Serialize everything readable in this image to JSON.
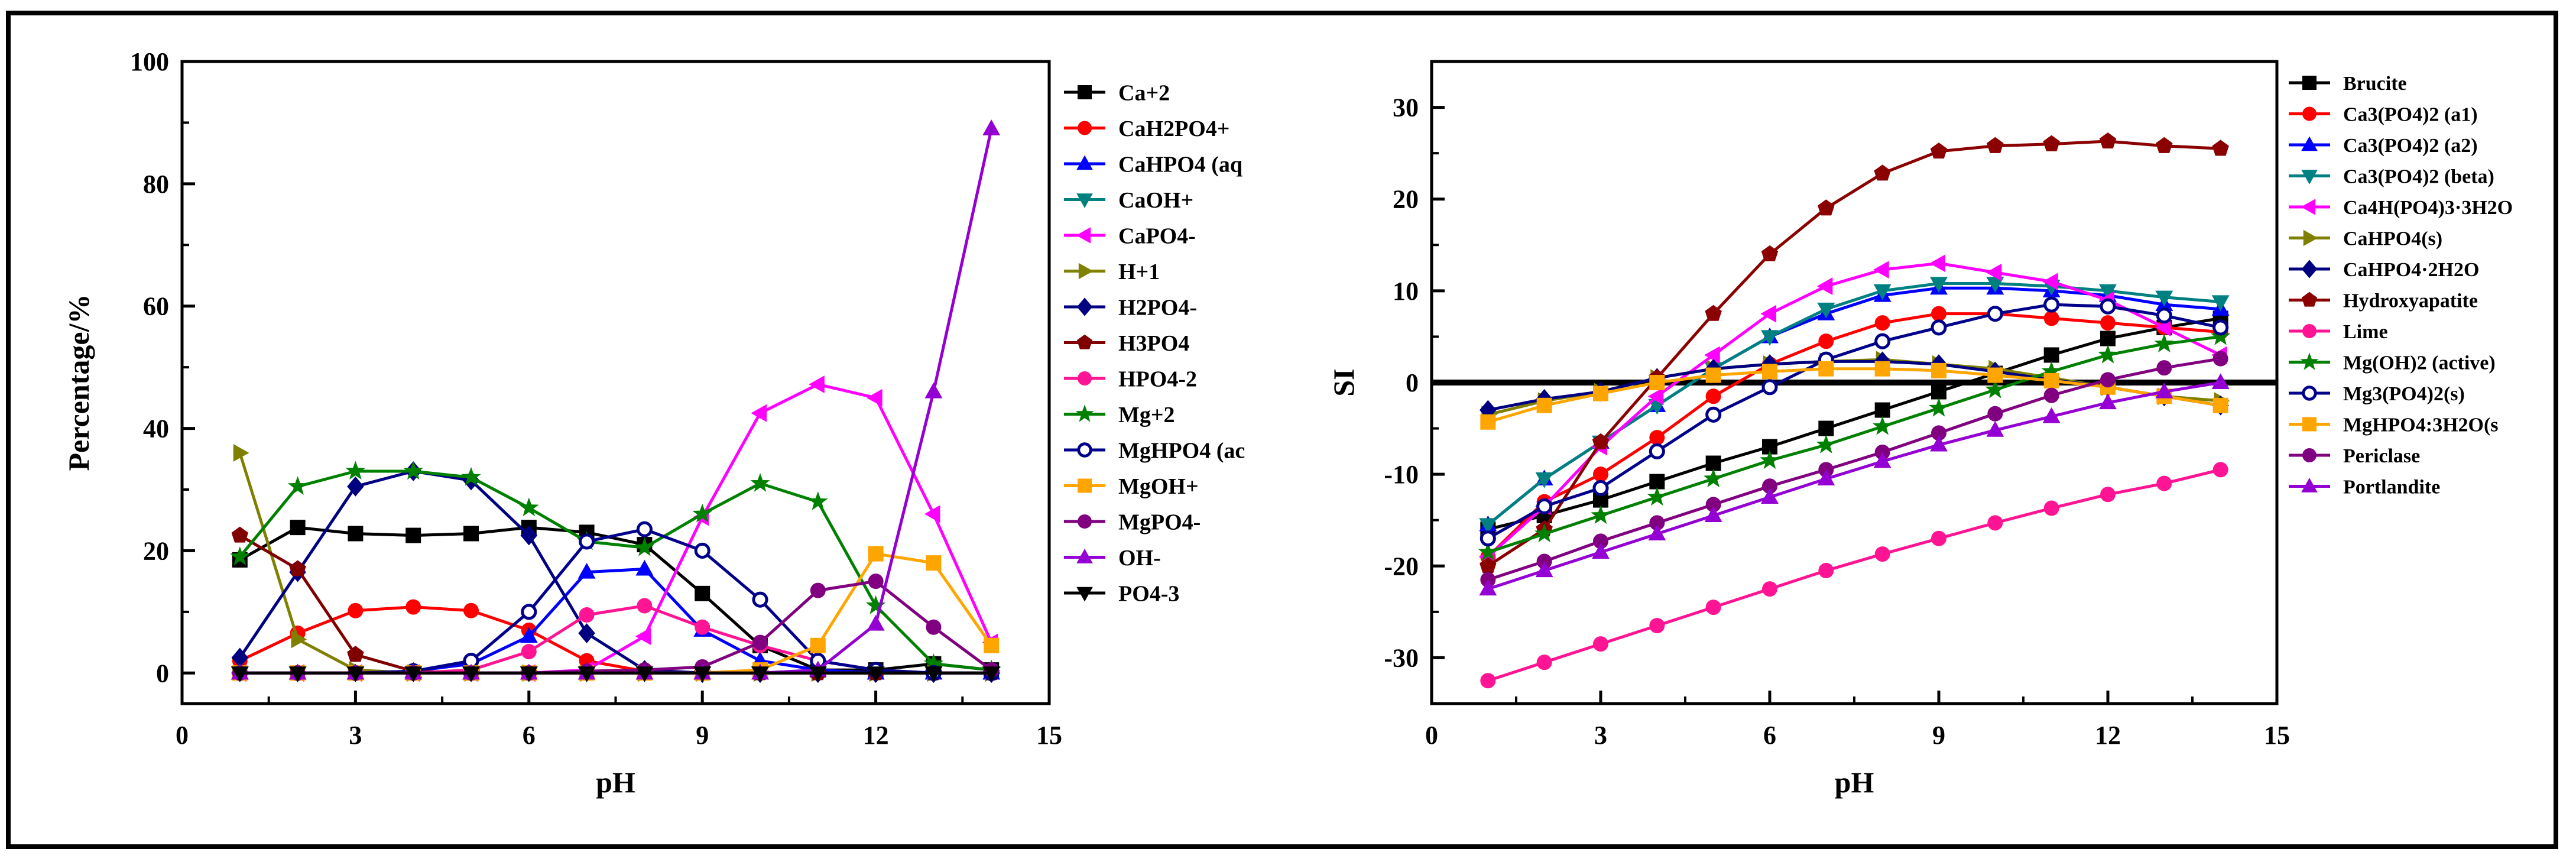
{
  "chart_data": [
    {
      "type": "line",
      "title": "",
      "xlabel": "pH",
      "ylabel": "Percentage/%",
      "xlim": [
        0,
        15
      ],
      "ylim": [
        -5,
        100
      ],
      "xticks": [
        0,
        3,
        6,
        9,
        12,
        15
      ],
      "yticks": [
        0,
        20,
        40,
        60,
        80,
        100
      ],
      "x": [
        1,
        2,
        3,
        4,
        5,
        6,
        7,
        8,
        9,
        10,
        11,
        12,
        13,
        14
      ],
      "legend_position": "right",
      "series": [
        {
          "name": "Ca+2",
          "color": "#000000",
          "marker": "square",
          "values": [
            18.5,
            23.8,
            22.8,
            22.5,
            22.8,
            23.8,
            23,
            21,
            13,
            4.5,
            0.5,
            0.5,
            1.5,
            0.5
          ]
        },
        {
          "name": "CaH2PO4+",
          "color": "#ff0000",
          "marker": "circle",
          "values": [
            2,
            6.5,
            10.2,
            10.8,
            10.2,
            7,
            2,
            0.3,
            0,
            0,
            0,
            0,
            0,
            0
          ]
        },
        {
          "name": "CaHPO4 (aq",
          "color": "#0000ff",
          "marker": "triangle-up",
          "values": [
            0,
            0,
            0,
            0.3,
            1.5,
            6,
            16.5,
            17,
            7,
            2,
            0.5,
            0,
            0,
            0
          ]
        },
        {
          "name": "CaOH+",
          "color": "#008080",
          "marker": "triangle-down",
          "values": [
            0,
            0,
            0,
            0,
            0,
            0,
            0,
            0,
            0,
            0,
            0,
            0,
            0,
            0
          ]
        },
        {
          "name": "CaPO4-",
          "color": "#ff00ff",
          "marker": "triangle-left",
          "values": [
            0,
            0,
            0,
            0,
            0,
            0,
            0.5,
            6,
            25.5,
            42.5,
            47.2,
            45,
            26,
            5
          ]
        },
        {
          "name": "H+1",
          "color": "#808000",
          "marker": "triangle-right",
          "values": [
            36,
            5.5,
            0.5,
            0,
            0,
            0,
            0,
            0,
            0,
            0,
            0,
            0,
            0,
            0
          ]
        },
        {
          "name": "H2PO4-",
          "color": "#000080",
          "marker": "diamond",
          "values": [
            2.5,
            16.5,
            30.5,
            33,
            31.5,
            22.5,
            6.5,
            0.5,
            0,
            0,
            0,
            0,
            0,
            0
          ]
        },
        {
          "name": "H3PO4",
          "color": "#800000",
          "marker": "pentagon",
          "values": [
            22.5,
            17,
            3,
            0.3,
            0,
            0,
            0,
            0,
            0,
            0,
            0,
            0,
            0,
            0
          ]
        },
        {
          "name": "HPO4-2",
          "color": "#ff1493",
          "marker": "circle",
          "values": [
            0,
            0,
            0,
            0,
            0.5,
            3.5,
            9.5,
            11,
            7.5,
            4.5,
            2,
            0.5,
            0,
            0
          ]
        },
        {
          "name": "Mg+2",
          "color": "#008000",
          "marker": "star",
          "values": [
            19,
            30.5,
            33,
            33,
            32,
            27,
            21.5,
            20.5,
            26,
            31,
            28,
            11,
            1.5,
            0.5
          ]
        },
        {
          "name": "MgHPO4 (ac",
          "color": "#00008b",
          "marker": "circle-open",
          "values": [
            0,
            0,
            0,
            0.3,
            2,
            10,
            21.5,
            23.5,
            20,
            12,
            2,
            0.5,
            0,
            0
          ]
        },
        {
          "name": "MgOH+",
          "color": "#ffa500",
          "marker": "square",
          "values": [
            0,
            0,
            0,
            0,
            0,
            0,
            0,
            0,
            0,
            0.5,
            4.5,
            19.5,
            18,
            4.5
          ]
        },
        {
          "name": "MgPO4-",
          "color": "#800080",
          "marker": "circle",
          "values": [
            0,
            0,
            0,
            0,
            0,
            0,
            0.3,
            0.5,
            1,
            5,
            13.5,
            15,
            7.5,
            0.5
          ]
        },
        {
          "name": "OH-",
          "color": "#9400d3",
          "marker": "triangle-up",
          "values": [
            0,
            0,
            0,
            0,
            0,
            0,
            0,
            0,
            0,
            0,
            0.5,
            8,
            46,
            89
          ]
        },
        {
          "name": "PO4-3",
          "color": "#000000",
          "marker": "triangle-down",
          "values": [
            0,
            0,
            0,
            0,
            0,
            0,
            0,
            0,
            0,
            0,
            0,
            0,
            0,
            0
          ]
        }
      ]
    },
    {
      "type": "line",
      "title": "",
      "xlabel": "pH",
      "ylabel": "SI",
      "xlim": [
        0,
        15
      ],
      "ylim": [
        -35,
        35
      ],
      "xticks": [
        0,
        3,
        6,
        9,
        12,
        15
      ],
      "yticks": [
        -30,
        -20,
        -10,
        0,
        10,
        20,
        30
      ],
      "x": [
        1,
        2,
        3,
        4,
        5,
        6,
        7,
        8,
        9,
        10,
        11,
        12,
        13,
        14
      ],
      "reference_line": 0,
      "legend_position": "right",
      "series": [
        {
          "name": "Brucite",
          "color": "#000000",
          "marker": "square",
          "values": [
            -16,
            -14.5,
            -12.8,
            -10.8,
            -8.8,
            -7,
            -5,
            -3,
            -1,
            1,
            3,
            4.8,
            6,
            7
          ]
        },
        {
          "name": "Ca3(PO4)2 (a1)",
          "color": "#ff0000",
          "marker": "circle",
          "values": [
            -19,
            -13,
            -10,
            -6,
            -1.5,
            2,
            4.5,
            6.5,
            7.5,
            7.5,
            7,
            6.5,
            6,
            5.5
          ]
        },
        {
          "name": "Ca3(PO4)2 (a2)",
          "color": "#0000ff",
          "marker": "triangle-up",
          "values": [
            -15.5,
            -10.5,
            -6.5,
            -2.5,
            1.5,
            5,
            7.5,
            9.5,
            10.3,
            10.3,
            10,
            9.5,
            8.5,
            8
          ]
        },
        {
          "name": "Ca3(PO4)2 (beta)",
          "color": "#008080",
          "marker": "triangle-down",
          "values": [
            -15.5,
            -10.5,
            -6.5,
            -2.5,
            1.5,
            5,
            8,
            10,
            10.8,
            10.8,
            10.5,
            10,
            9.3,
            8.8
          ]
        },
        {
          "name": "Ca4H(PO4)3·3H2O",
          "color": "#ff00ff",
          "marker": "triangle-left",
          "values": [
            -19,
            -13.5,
            -7,
            -1.5,
            3,
            7.5,
            10.5,
            12.3,
            13,
            12,
            11,
            9,
            6,
            3
          ]
        },
        {
          "name": "CaHPO4(s)",
          "color": "#808000",
          "marker": "triangle-right",
          "values": [
            -3.5,
            -2,
            -1,
            0.5,
            1.5,
            2,
            2.3,
            2.5,
            2,
            1.5,
            0.5,
            -0.5,
            -1.5,
            -2
          ]
        },
        {
          "name": "CaHPO4·2H2O",
          "color": "#000080",
          "marker": "diamond",
          "values": [
            -3,
            -1.8,
            -1,
            0.5,
            1.5,
            2,
            2.3,
            2.3,
            2,
            1.2,
            0.3,
            -0.5,
            -1.5,
            -2.5
          ]
        },
        {
          "name": "Hydroxyapatite",
          "color": "#8b0000",
          "marker": "pentagon",
          "values": [
            -20,
            -16,
            -6.5,
            0.5,
            7.5,
            14,
            19,
            22.8,
            25.2,
            25.8,
            26,
            26.3,
            25.8,
            25.5
          ]
        },
        {
          "name": "Lime",
          "color": "#ff1493",
          "marker": "circle",
          "values": [
            -32.5,
            -30.5,
            -28.5,
            -26.5,
            -24.5,
            -22.5,
            -20.5,
            -18.7,
            -17,
            -15.3,
            -13.7,
            -12.2,
            -11,
            -9.5
          ]
        },
        {
          "name": "Mg(OH)2 (active)",
          "color": "#008000",
          "marker": "star",
          "values": [
            -18.5,
            -16.5,
            -14.5,
            -12.5,
            -10.5,
            -8.5,
            -6.8,
            -4.8,
            -2.8,
            -0.8,
            1.2,
            3,
            4.2,
            5
          ]
        },
        {
          "name": "Mg3(PO4)2(s)",
          "color": "#00008b",
          "marker": "circle-open",
          "values": [
            -17,
            -13.5,
            -11.5,
            -7.5,
            -3.5,
            -0.5,
            2.5,
            4.5,
            6,
            7.5,
            8.5,
            8.3,
            7.3,
            6
          ]
        },
        {
          "name": "MgHPO4:3H2O(s",
          "color": "#ffa500",
          "marker": "square",
          "values": [
            -4.3,
            -2.5,
            -1.2,
            0,
            0.8,
            1.2,
            1.5,
            1.5,
            1.3,
            0.8,
            0.2,
            -0.5,
            -1.5,
            -2.5
          ]
        },
        {
          "name": "Periclase",
          "color": "#800080",
          "marker": "circle",
          "values": [
            -21.5,
            -19.5,
            -17.3,
            -15.3,
            -13.3,
            -11.3,
            -9.5,
            -7.6,
            -5.5,
            -3.4,
            -1.4,
            0.3,
            1.6,
            2.6
          ]
        },
        {
          "name": "Portlandite",
          "color": "#9400d3",
          "marker": "triangle-up",
          "values": [
            -22.5,
            -20.5,
            -18.5,
            -16.5,
            -14.5,
            -12.5,
            -10.5,
            -8.6,
            -6.8,
            -5.2,
            -3.7,
            -2.2,
            -1,
            0
          ]
        }
      ]
    }
  ]
}
